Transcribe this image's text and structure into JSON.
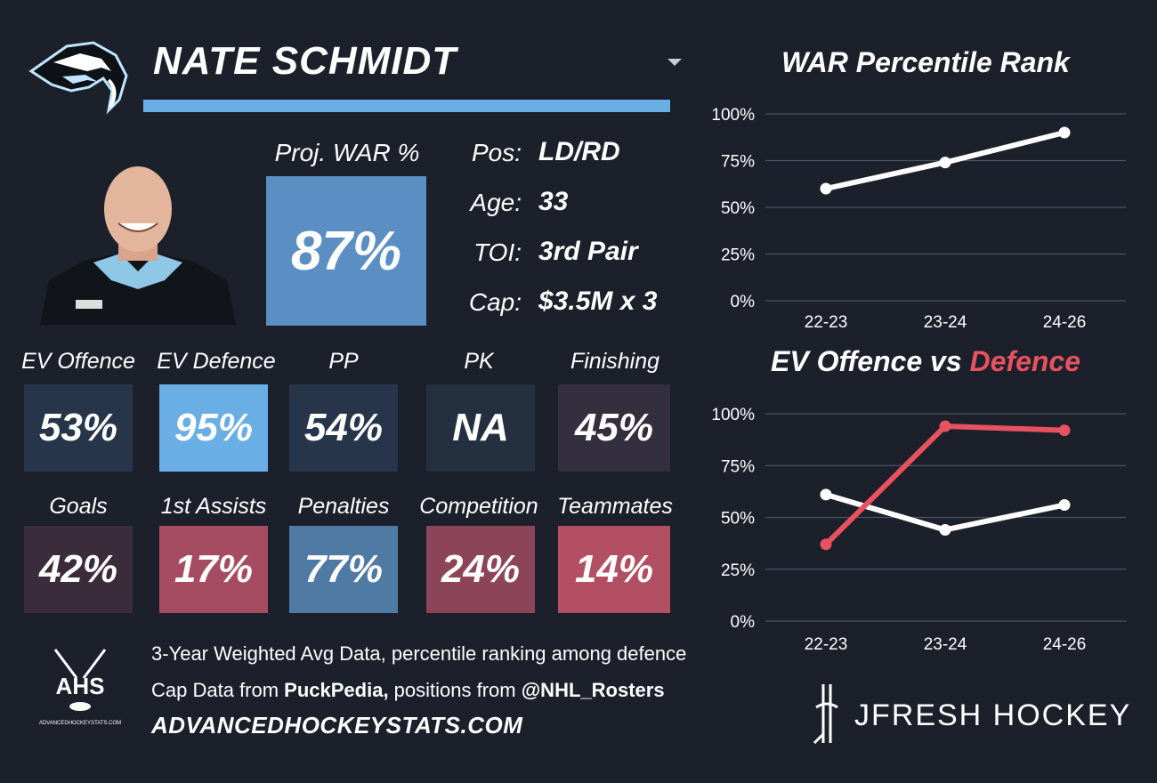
{
  "player": {
    "name": "NATE SCHMIDT",
    "proj_war_label": "Proj. WAR %",
    "proj_war_value": "87%",
    "proj_war_color": "#5b8fc4",
    "info": [
      {
        "label": "Pos:",
        "value": "LD/RD"
      },
      {
        "label": "Age:",
        "value": "33"
      },
      {
        "label": "TOI:",
        "value": "3rd Pair"
      },
      {
        "label": "Cap:",
        "value": "$3.5M x 3"
      }
    ]
  },
  "stats_row1": [
    {
      "label": "EV Offence",
      "value": "53%",
      "color": "#26354a"
    },
    {
      "label": "EV Defence",
      "value": "95%",
      "color": "#6aaee6"
    },
    {
      "label": "PP",
      "value": "54%",
      "color": "#26354a"
    },
    {
      "label": "PK",
      "value": "NA",
      "color": "#243040"
    },
    {
      "label": "Finishing",
      "value": "45%",
      "color": "#332f3e"
    }
  ],
  "stats_row2": [
    {
      "label": "Goals",
      "value": "42%",
      "color": "#3b2c3c"
    },
    {
      "label": "1st Assists",
      "value": "17%",
      "color": "#a64c62"
    },
    {
      "label": "Penalties",
      "value": "77%",
      "color": "#4f7aa4"
    },
    {
      "label": "Competition",
      "value": "24%",
      "color": "#8c4558"
    },
    {
      "label": "Teammates",
      "value": "14%",
      "color": "#b24f63"
    }
  ],
  "footer": {
    "line1": "3-Year Weighted Avg Data, percentile ranking among defence",
    "line2_prefix": "Cap Data from ",
    "line2_source": "PuckPedia,",
    "line2_mid": " positions from ",
    "line2_handle": "@NHL_Rosters",
    "site": "ADVANCEDHOCKEYSTATS.COM",
    "ahs_logo_text": "AHS",
    "ahs_logo_sub": "ADVANCEDHOCKEYSTATS.COM",
    "brand": "JFRESH HOCKEY"
  },
  "chart_data": [
    {
      "type": "line",
      "title": "WAR Percentile Rank",
      "categories": [
        "22-23",
        "23-24",
        "24-26"
      ],
      "y_ticks": [
        "0%",
        "25%",
        "50%",
        "75%",
        "100%"
      ],
      "ylim": [
        0,
        100
      ],
      "grid": true,
      "series": [
        {
          "values": [
            60,
            74,
            90
          ],
          "color": "#ffffff"
        }
      ]
    },
    {
      "type": "line",
      "title_part1": "EV Offence vs ",
      "title_part2": "Defence",
      "title_part2_color": "#e8515f",
      "categories": [
        "22-23",
        "23-24",
        "24-26"
      ],
      "y_ticks": [
        "0%",
        "25%",
        "50%",
        "75%",
        "100%"
      ],
      "ylim": [
        0,
        100
      ],
      "grid": true,
      "series": [
        {
          "values": [
            61,
            44,
            56
          ],
          "color": "#ffffff"
        },
        {
          "values": [
            37,
            94,
            92
          ],
          "color": "#e8515f"
        }
      ]
    }
  ]
}
